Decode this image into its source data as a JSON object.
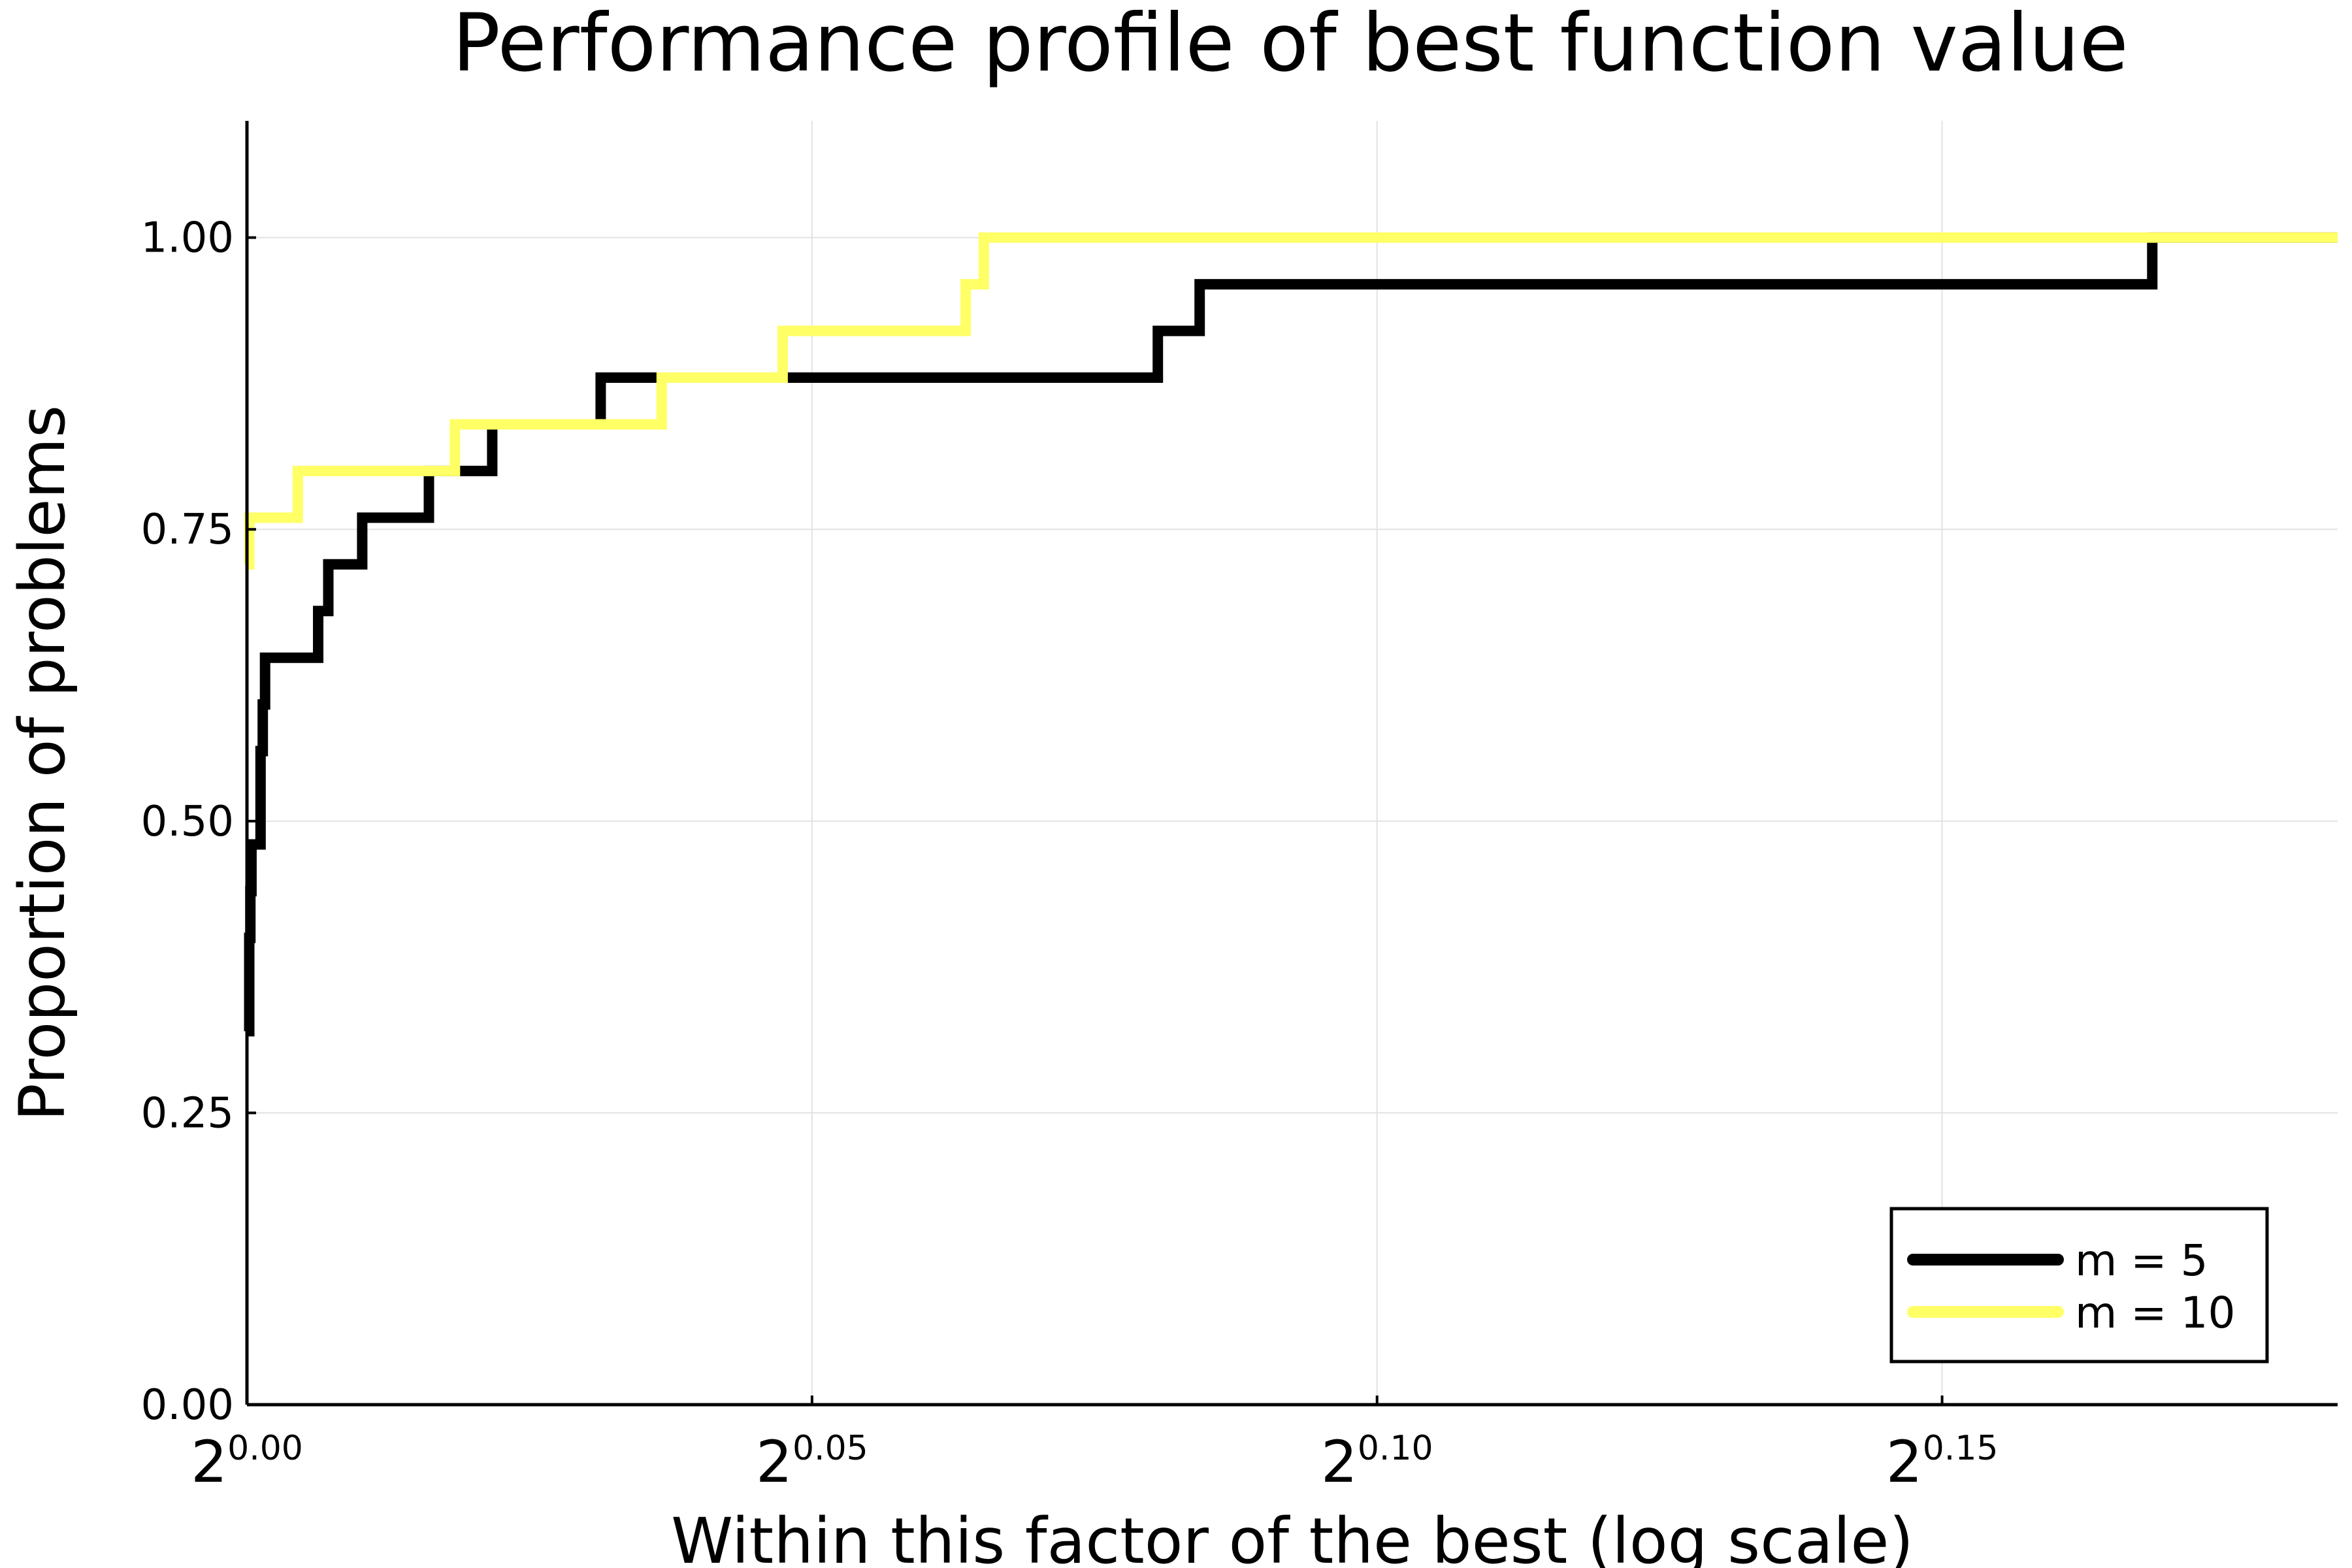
{
  "chart_data": {
    "type": "line",
    "step": true,
    "title": "Performance profile of best function value",
    "xlabel": "Within this factor of the best (log scale)",
    "ylabel": "Proportion of problems",
    "xscale": "log2",
    "xlim": [
      0.0,
      0.185
    ],
    "ylim": [
      0.0,
      1.1
    ],
    "grid": true,
    "legend_position": "bottom-right",
    "x_ticks": [
      {
        "value": 0.0,
        "base": "2",
        "exp": "0.00"
      },
      {
        "value": 0.05,
        "base": "2",
        "exp": "0.05"
      },
      {
        "value": 0.1,
        "base": "2",
        "exp": "0.10"
      },
      {
        "value": 0.15,
        "base": "2",
        "exp": "0.15"
      }
    ],
    "y_ticks": [
      {
        "value": 0.0,
        "label": "0.00"
      },
      {
        "value": 0.25,
        "label": "0.25"
      },
      {
        "value": 0.5,
        "label": "0.50"
      },
      {
        "value": 0.75,
        "label": "0.75"
      },
      {
        "value": 1.0,
        "label": "1.00"
      }
    ],
    "series": [
      {
        "name": "m = 5",
        "color": "#000000",
        "x": [
          0.0,
          0.0002,
          0.0003,
          0.0004,
          0.0006,
          0.0012,
          0.0014,
          0.0016,
          0.0063,
          0.0072,
          0.0102,
          0.0161,
          0.0217,
          0.0313,
          0.0806,
          0.0843,
          0.1686,
          0.185
        ],
        "y": [
          0.32,
          0.4,
          0.44,
          0.48,
          0.48,
          0.56,
          0.6,
          0.64,
          0.68,
          0.72,
          0.76,
          0.8,
          0.84,
          0.88,
          0.92,
          0.96,
          1.0,
          1.0
        ]
      },
      {
        "name": "m = 10",
        "color": "#ffff66",
        "x": [
          0.0,
          0.0002,
          0.0045,
          0.0184,
          0.0367,
          0.0474,
          0.0636,
          0.0652,
          0.185
        ],
        "y": [
          0.72,
          0.76,
          0.8,
          0.84,
          0.88,
          0.92,
          0.96,
          1.0,
          1.0
        ]
      }
    ]
  }
}
